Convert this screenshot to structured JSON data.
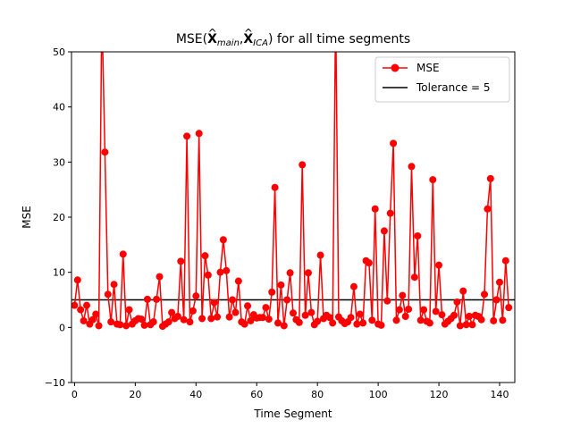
{
  "chart_data": {
    "type": "line",
    "title_parts": [
      "MSE(",
      "X",
      "main",
      ",",
      "X",
      "ICA",
      ") for all time segments"
    ],
    "xlabel": "Time Segment",
    "ylabel": "MSE",
    "xlim": [
      -1,
      145
    ],
    "ylim": [
      -10,
      50
    ],
    "xticks": [
      0,
      20,
      40,
      60,
      80,
      100,
      120,
      140
    ],
    "yticks": [
      -10,
      0,
      10,
      20,
      30,
      40,
      50
    ],
    "legend_position": "top-right",
    "series": [
      {
        "name": "MSE",
        "color": "#ff0000",
        "marker": "circle",
        "x": [
          0,
          1,
          2,
          3,
          4,
          5,
          6,
          7,
          8,
          9,
          10,
          11,
          12,
          13,
          14,
          15,
          16,
          17,
          18,
          19,
          20,
          21,
          22,
          23,
          24,
          25,
          26,
          27,
          28,
          29,
          30,
          31,
          32,
          33,
          34,
          35,
          36,
          37,
          38,
          39,
          40,
          41,
          42,
          43,
          44,
          45,
          46,
          47,
          48,
          49,
          50,
          51,
          52,
          53,
          54,
          55,
          56,
          57,
          58,
          59,
          60,
          61,
          62,
          63,
          64,
          65,
          66,
          67,
          68,
          69,
          70,
          71,
          72,
          73,
          74,
          75,
          76,
          77,
          78,
          79,
          80,
          81,
          82,
          83,
          84,
          85,
          86,
          87,
          88,
          89,
          90,
          91,
          92,
          93,
          94,
          95,
          96,
          97,
          98,
          99,
          100,
          101,
          102,
          103,
          104,
          105,
          106,
          107,
          108,
          109,
          110,
          111,
          112,
          113,
          114,
          115,
          116,
          117,
          118,
          119,
          120,
          121,
          122,
          123,
          124,
          125,
          126,
          127,
          128,
          129,
          130,
          131,
          132,
          133,
          134,
          135,
          136,
          137,
          138,
          139,
          140,
          141,
          142,
          143
        ],
        "values": [
          4.0,
          8.6,
          3.2,
          1.2,
          4.0,
          0.6,
          1.4,
          2.4,
          0.3,
          58.0,
          31.8,
          6.0,
          1.0,
          7.8,
          0.6,
          0.5,
          13.3,
          0.3,
          3.2,
          0.6,
          1.2,
          1.6,
          1.5,
          0.4,
          5.1,
          0.5,
          1.0,
          5.1,
          9.2,
          0.2,
          0.6,
          1.0,
          2.7,
          1.6,
          2.0,
          12.0,
          1.4,
          34.7,
          1.0,
          3.0,
          5.7,
          35.2,
          1.6,
          13.0,
          9.5,
          1.6,
          4.5,
          1.9,
          10.0,
          15.9,
          10.3,
          1.9,
          5.0,
          2.7,
          8.4,
          1.0,
          0.6,
          3.9,
          1.2,
          2.3,
          1.7,
          1.8,
          1.8,
          3.6,
          1.5,
          6.4,
          25.4,
          0.8,
          7.7,
          0.3,
          5.0,
          9.9,
          2.6,
          1.4,
          0.9,
          29.5,
          2.2,
          9.9,
          2.7,
          0.5,
          1.1,
          13.1,
          1.6,
          2.2,
          1.8,
          0.8,
          58.0,
          1.9,
          1.2,
          0.7,
          1.0,
          1.8,
          7.4,
          0.6,
          2.4,
          0.8,
          12.1,
          11.7,
          1.3,
          21.5,
          0.6,
          0.4,
          17.5,
          4.8,
          20.7,
          33.4,
          1.3,
          3.2,
          5.8,
          2.0,
          3.3,
          29.2,
          9.1,
          16.6,
          1.3,
          3.2,
          1.1,
          0.8,
          26.8,
          2.9,
          11.3,
          2.3,
          0.6,
          1.1,
          1.6,
          2.2,
          4.6,
          0.3,
          6.6,
          0.5,
          2.0,
          0.5,
          2.2,
          2.0,
          1.4,
          6.0,
          21.5,
          27.0,
          1.2,
          5.0,
          8.2,
          1.3,
          12.1,
          3.6
        ]
      },
      {
        "name": "Tolerance = 5",
        "color": "#000000",
        "constant": 5
      }
    ]
  }
}
